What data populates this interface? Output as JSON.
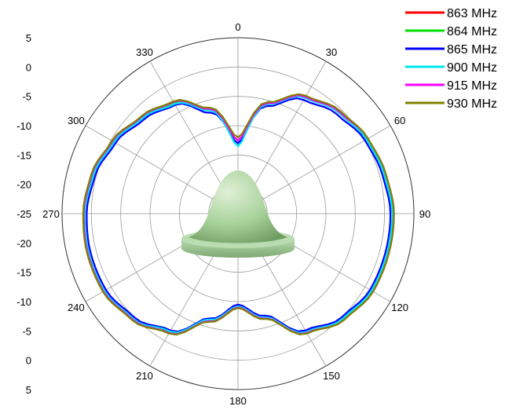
{
  "chart_data": {
    "type": "polar-line",
    "angular_ticks": [
      "0",
      "30",
      "60",
      "90",
      "120",
      "150",
      "180",
      "210",
      "240",
      "270",
      "300",
      "330"
    ],
    "radial_ticks": [
      "5",
      "0",
      "-5",
      "-10",
      "-15",
      "-20",
      "-25",
      "-20",
      "-15",
      "-10",
      "-5",
      "0",
      "5"
    ],
    "radial_range": [
      -25,
      5
    ],
    "radial_grid_step": 5,
    "angular_direction": "clockwise",
    "zero_angle": "top",
    "grid": true,
    "legend_position": "top-right",
    "angles_deg": [
      0,
      15,
      30,
      45,
      60,
      75,
      90,
      105,
      120,
      135,
      150,
      165,
      180,
      195,
      210,
      225,
      240,
      255,
      270,
      285,
      300,
      315,
      330,
      345
    ],
    "series": [
      {
        "name": "863 MHz",
        "color": "#ff0000",
        "values": [
          -12.5,
          -5.5,
          -2.0,
          -0.5,
          0.5,
          1.0,
          1.5,
          1.5,
          1.5,
          0.5,
          -1.5,
          -6.5,
          -9.0,
          -6.0,
          -1.5,
          0.5,
          1.5,
          1.5,
          1.3,
          0.8,
          -0.3,
          -1.7,
          -3.0,
          -6.5
        ]
      },
      {
        "name": "864 MHz",
        "color": "#00e000",
        "values": [
          -12.5,
          -5.6,
          -2.1,
          -0.6,
          0.4,
          0.9,
          1.4,
          1.4,
          1.4,
          0.4,
          -1.6,
          -6.6,
          -9.1,
          -6.1,
          -1.6,
          0.4,
          1.4,
          1.4,
          1.2,
          0.7,
          -0.4,
          -1.8,
          -3.1,
          -6.6
        ]
      },
      {
        "name": "865 MHz",
        "color": "#0000ff",
        "values": [
          -13.0,
          -6.0,
          -2.6,
          -1.1,
          0.0,
          0.5,
          1.0,
          1.0,
          1.0,
          0.0,
          -2.0,
          -7.0,
          -9.5,
          -6.5,
          -2.0,
          0.0,
          1.0,
          1.0,
          0.8,
          0.2,
          -0.9,
          -2.3,
          -3.6,
          -7.2
        ]
      },
      {
        "name": "900 MHz",
        "color": "#00e5ee",
        "values": [
          -13.5,
          -5.7,
          -2.2,
          -0.7,
          0.3,
          0.8,
          1.3,
          1.3,
          1.3,
          0.3,
          -1.7,
          -6.7,
          -9.2,
          -6.3,
          -1.8,
          0.3,
          1.3,
          1.3,
          1.1,
          0.5,
          -0.6,
          -2.0,
          -3.4,
          -6.8
        ]
      },
      {
        "name": "915 MHz",
        "color": "#ff00ff",
        "values": [
          -12.5,
          -5.5,
          -2.0,
          -0.5,
          0.6,
          1.1,
          1.6,
          1.6,
          1.6,
          0.6,
          -1.5,
          -6.5,
          -9.0,
          -6.0,
          -1.5,
          0.5,
          1.5,
          1.5,
          1.3,
          0.8,
          -0.3,
          -1.7,
          -3.0,
          -6.5
        ]
      },
      {
        "name": "930 MHz",
        "color": "#808000",
        "values": [
          -12.0,
          -5.3,
          -1.8,
          -0.3,
          0.6,
          1.1,
          1.6,
          1.6,
          1.6,
          0.6,
          -1.4,
          -6.4,
          -8.9,
          -5.9,
          -1.4,
          0.6,
          1.6,
          1.6,
          1.4,
          0.9,
          -0.2,
          -1.6,
          -2.9,
          -6.3
        ]
      }
    ]
  },
  "colors": {
    "grid": "#9a9a9a",
    "antenna_body": "#9ccc8e",
    "antenna_shadow": "#6e9a62"
  },
  "icons": {
    "antenna": "dome-antenna-3d-icon"
  }
}
